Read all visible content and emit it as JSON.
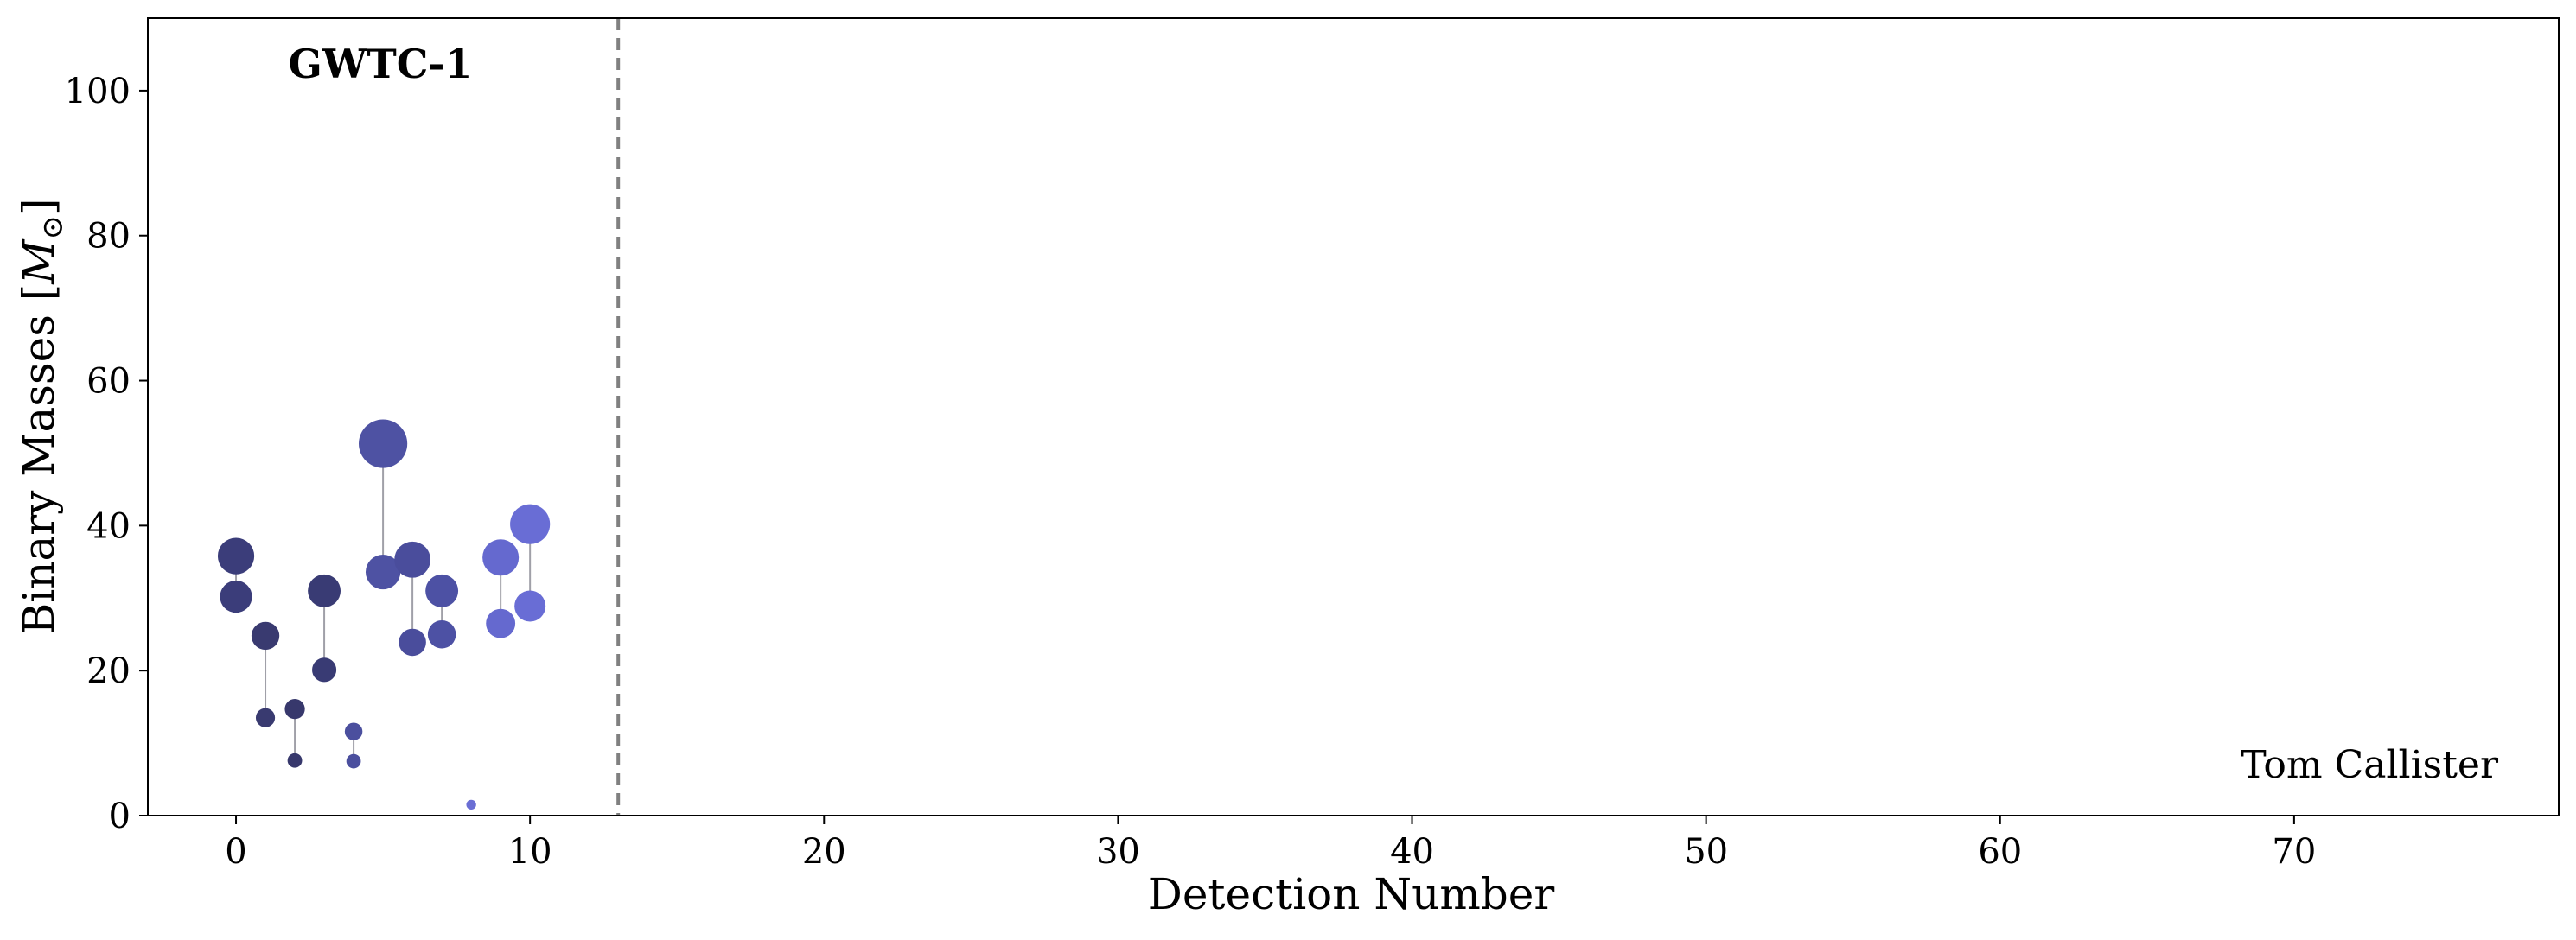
{
  "chart_data": {
    "type": "scatter",
    "title": "",
    "xlabel": "Detection Number",
    "ylabel_prefix": "Binary Masses [",
    "ylabel_symbol": "M",
    "ylabel_sub": "⊙",
    "ylabel_suffix": "]",
    "xlim": [
      -3,
      79
    ],
    "ylim": [
      0,
      110
    ],
    "xticks": [
      0,
      10,
      20,
      30,
      40,
      50,
      60,
      70
    ],
    "yticks": [
      0,
      20,
      40,
      60,
      80,
      100
    ],
    "grid": false,
    "catalog_boundary_x": 13,
    "catalog_label": "GWTC-1",
    "credit": "Tom Callister",
    "events": [
      {
        "x": 0,
        "m1": 35.8,
        "m2": 30.2,
        "color": "#3b3d7a"
      },
      {
        "x": 1,
        "m1": 24.8,
        "m2": 13.5,
        "color": "#393a70"
      },
      {
        "x": 2,
        "m1": 14.7,
        "m2": 7.6,
        "color": "#37386c"
      },
      {
        "x": 3,
        "m1": 31.0,
        "m2": 20.1,
        "color": "#393b74"
      },
      {
        "x": 4,
        "m1": 11.6,
        "m2": 7.5,
        "color": "#4b4f9e"
      },
      {
        "x": 5,
        "m1": 51.3,
        "m2": 33.6,
        "color": "#4e52a3"
      },
      {
        "x": 6,
        "m1": 35.3,
        "m2": 23.9,
        "color": "#4a4d9c"
      },
      {
        "x": 7,
        "m1": 31.0,
        "m2": 25.0,
        "color": "#4d51a4"
      },
      {
        "x": 8,
        "m1": 1.5,
        "m2": null,
        "color": "#6a6ed4"
      },
      {
        "x": 9,
        "m1": 35.6,
        "m2": 26.5,
        "color": "#6569cf"
      },
      {
        "x": 10,
        "m1": 40.2,
        "m2": 28.9,
        "color": "#696dd5"
      }
    ]
  }
}
